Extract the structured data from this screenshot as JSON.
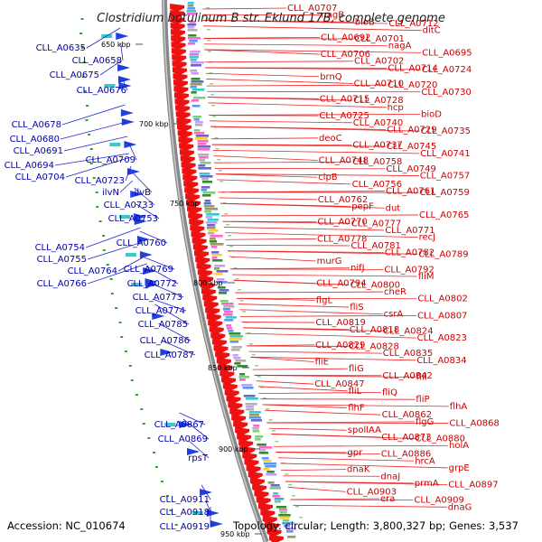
{
  "title": "Clostridium botulinum B str. Eklund 17B, complete genome",
  "footer": {
    "accession": "Accession: NC_010674",
    "stats": "Topology: circular; Length: 3,800,327 bp; Genes: 3,537"
  },
  "ticks": [
    "650 kbp",
    "700 kbp",
    "750 kbp",
    "800 kbp",
    "850 kbp",
    "900 kbp",
    "950 kbp"
  ],
  "left_labels": [
    "CLL_A0635",
    "CLL_A0658",
    "CLL_A0675",
    "CLL_A0676",
    "CLL_A0678",
    "CLL_A0680",
    "CLL_A0691",
    "CLL_A0694",
    "CLL_A0704",
    "CLL_A0709",
    "CLL_A0723",
    "ilvN",
    "ilvB",
    "CLL_A0733",
    "CLL_A0753",
    "CLL_A0760",
    "CLL_A0754",
    "CLL_A0755",
    "CLL_A0764",
    "CLL_A0769",
    "CLL_A0766",
    "CLL_A0772",
    "CLL_A0773",
    "CLL_A0774",
    "CLL_A0785",
    "CLL_A0786",
    "CLL_A0787",
    "CLL_A0867",
    "CLL_A0869",
    "rpsT",
    "CLL_A0911",
    "CLL_A0918",
    "CLL_A0919"
  ],
  "right_labels": [
    "CLL_A0707",
    "nagB",
    "bioB",
    "CLL_A0712",
    "ditC",
    "CLL_A0692",
    "CLL_A0701",
    "nagA",
    "CLL_A0695",
    "CLL_A0706",
    "CLL_A0702",
    "CLL_A0714",
    "CLL_A0724",
    "brnQ",
    "CLL_A0710",
    "CLL_A0720",
    "CLL_A0730",
    "CLL_A0715",
    "CLL_A0728",
    "hcp",
    "bioD",
    "CLL_A0725",
    "CLL_A0740",
    "CLL_A0729",
    "CLL_A0735",
    "deoC",
    "CLL_A0737",
    "CLL_A0745",
    "CLL_A0741",
    "CLL_A0748",
    "CLL_A0758",
    "CLL_A0749",
    "CLL_A0757",
    "clpB",
    "CLL_A0756",
    "CLL_A0761",
    "CLL_A0759",
    "CLL_A0762",
    "pepF",
    "dut",
    "CLL_A0765",
    "CLL_A0770",
    "CLL_A0777",
    "CLL_A0771",
    "recJ",
    "CLL_A0778",
    "CLL_A0781",
    "CLL_A0782",
    "CLL_A0789",
    "murG",
    "nifJ",
    "CLL_A0792",
    "fliM",
    "CLL_A0794",
    "CLL_A0800",
    "cheR",
    "CLL_A0802",
    "flgL",
    "fliS",
    "csrA",
    "CLL_A0807",
    "CLL_A0819",
    "CLL_A0818",
    "CLL_A0824",
    "CLL_A0823",
    "CLL_A0829",
    "CLL_A0828",
    "CLL_A0835",
    "CLL_A0834",
    "fliE",
    "fliG",
    "CLL_A0842",
    "flil",
    "CLL_A0847",
    "fliL",
    "fliQ",
    "fliP",
    "flhA",
    "flhF",
    "CLL_A0862",
    "flgG",
    "CLL_A0868",
    "spollAA",
    "CLL_A0873",
    "CLL_A0880",
    "holA",
    "gpr",
    "CLL_A0886",
    "hrcA",
    "grpE",
    "dnaK",
    "dnaJ",
    "prmA",
    "CLL_A0897",
    "CLL_A0903",
    "era",
    "CLL_A0909",
    "dnaG"
  ]
}
